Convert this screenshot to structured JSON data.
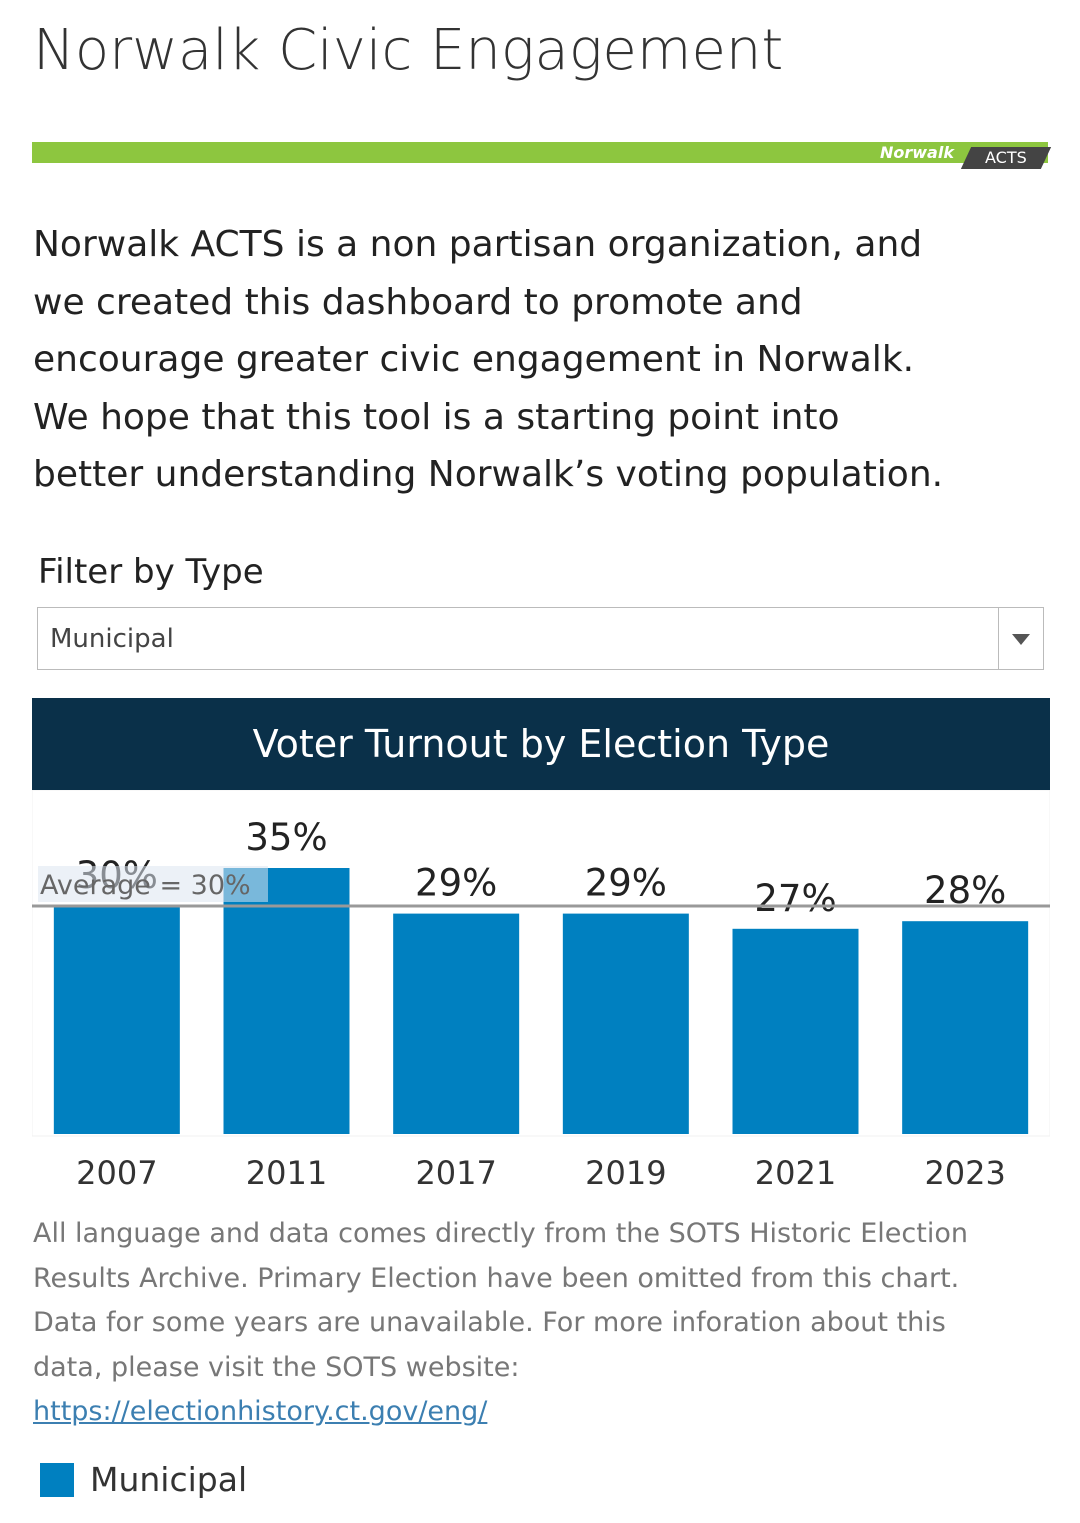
{
  "header": {
    "title": "Norwalk Civic Engagement",
    "logo": {
      "brand": "Norwalk",
      "mark": "ACTS"
    }
  },
  "description": [
    "Norwalk ACTS is a non partisan organization, and",
    "we created this dashboard to promote and",
    "encourage greater civic engagement in Norwalk.",
    "We hope that this tool is a starting point into",
    "better understanding Norwalk’s voting population."
  ],
  "filter": {
    "label": "Filter by Type",
    "selected": "Municipal"
  },
  "chart_data": {
    "type": "bar",
    "title": "Voter Turnout by Election Type",
    "categories": [
      "2007",
      "2011",
      "2017",
      "2019",
      "2021",
      "2023"
    ],
    "values": [
      30,
      35,
      29,
      29,
      27,
      28
    ],
    "value_labels": [
      "30%",
      "35%",
      "29%",
      "29%",
      "27%",
      "28%"
    ],
    "color": "#0080c0",
    "average": {
      "value": 30,
      "label": "Average = 30%"
    },
    "legend": "Municipal"
  },
  "footer": {
    "lines": [
      "All language and data comes directly from the SOTS Historic Election",
      "Results Archive. Primary Election have been omitted from this chart.",
      "Data for some years are unavailable. For more inforation about this",
      "data, please visit the SOTS website:"
    ],
    "link": "https://electionhistory.ct.gov/eng/"
  }
}
